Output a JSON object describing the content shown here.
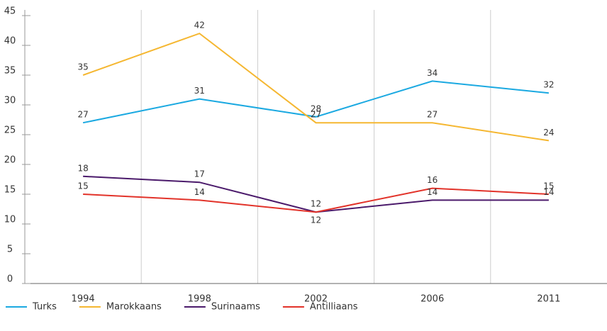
{
  "chart_data": {
    "type": "line",
    "categories": [
      "1994",
      "1998",
      "2002",
      "2006",
      "2011"
    ],
    "series": [
      {
        "name": "Turks",
        "color": "#1ba9e1",
        "values": [
          27,
          31,
          28,
          34,
          32
        ]
      },
      {
        "name": "Marokkaans",
        "color": "#f5b731",
        "values": [
          35,
          42,
          27,
          27,
          24
        ]
      },
      {
        "name": "Surinaams",
        "color": "#4b1a6b",
        "values": [
          18,
          17,
          12,
          14,
          14
        ]
      },
      {
        "name": "Antilliaans",
        "color": "#e2332a",
        "values": [
          15,
          14,
          12,
          16,
          15
        ]
      }
    ],
    "ylim": [
      0,
      45
    ],
    "yticks": [
      0,
      5,
      10,
      15,
      20,
      25,
      30,
      35,
      40,
      45
    ],
    "grid": true,
    "legend": "bottom"
  }
}
